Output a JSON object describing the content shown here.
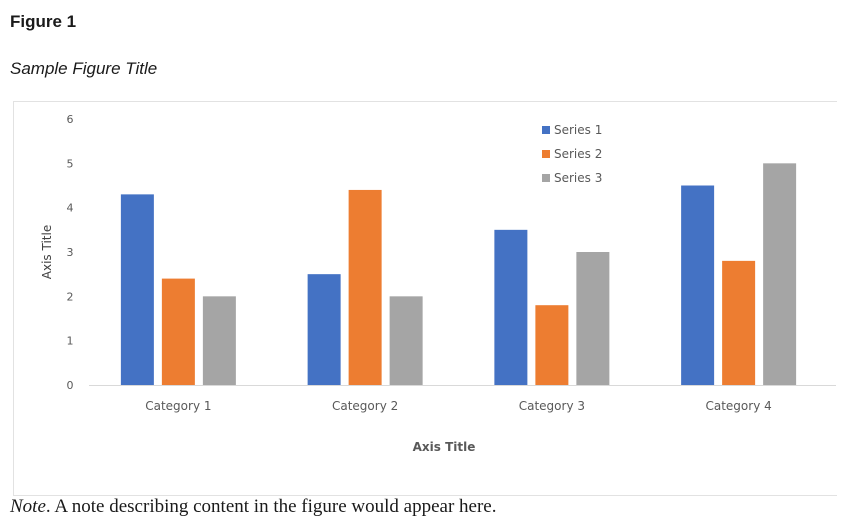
{
  "figure_label": "Figure 1",
  "figure_title": "Sample Figure Title",
  "note": {
    "lead": "Note",
    "text": ". A note describing content in the figure would appear here."
  },
  "chart_data": {
    "type": "bar",
    "categories": [
      "Category 1",
      "Category 2",
      "Category 3",
      "Category 4"
    ],
    "series": [
      {
        "name": "Series 1",
        "color": "#4472C4",
        "values": [
          4.3,
          2.5,
          3.5,
          4.5
        ]
      },
      {
        "name": "Series 2",
        "color": "#ED7D31",
        "values": [
          2.4,
          4.4,
          1.8,
          2.8
        ]
      },
      {
        "name": "Series 3",
        "color": "#A5A5A5",
        "values": [
          2.0,
          2.0,
          3.0,
          5.0
        ]
      }
    ],
    "xlabel": "Axis Title",
    "ylabel": "Axis Title",
    "ylim": [
      0,
      6
    ],
    "yticks": [
      "0",
      "1",
      "2",
      "3",
      "4",
      "5",
      "6"
    ],
    "grid": false,
    "legend_position": "top-right"
  }
}
